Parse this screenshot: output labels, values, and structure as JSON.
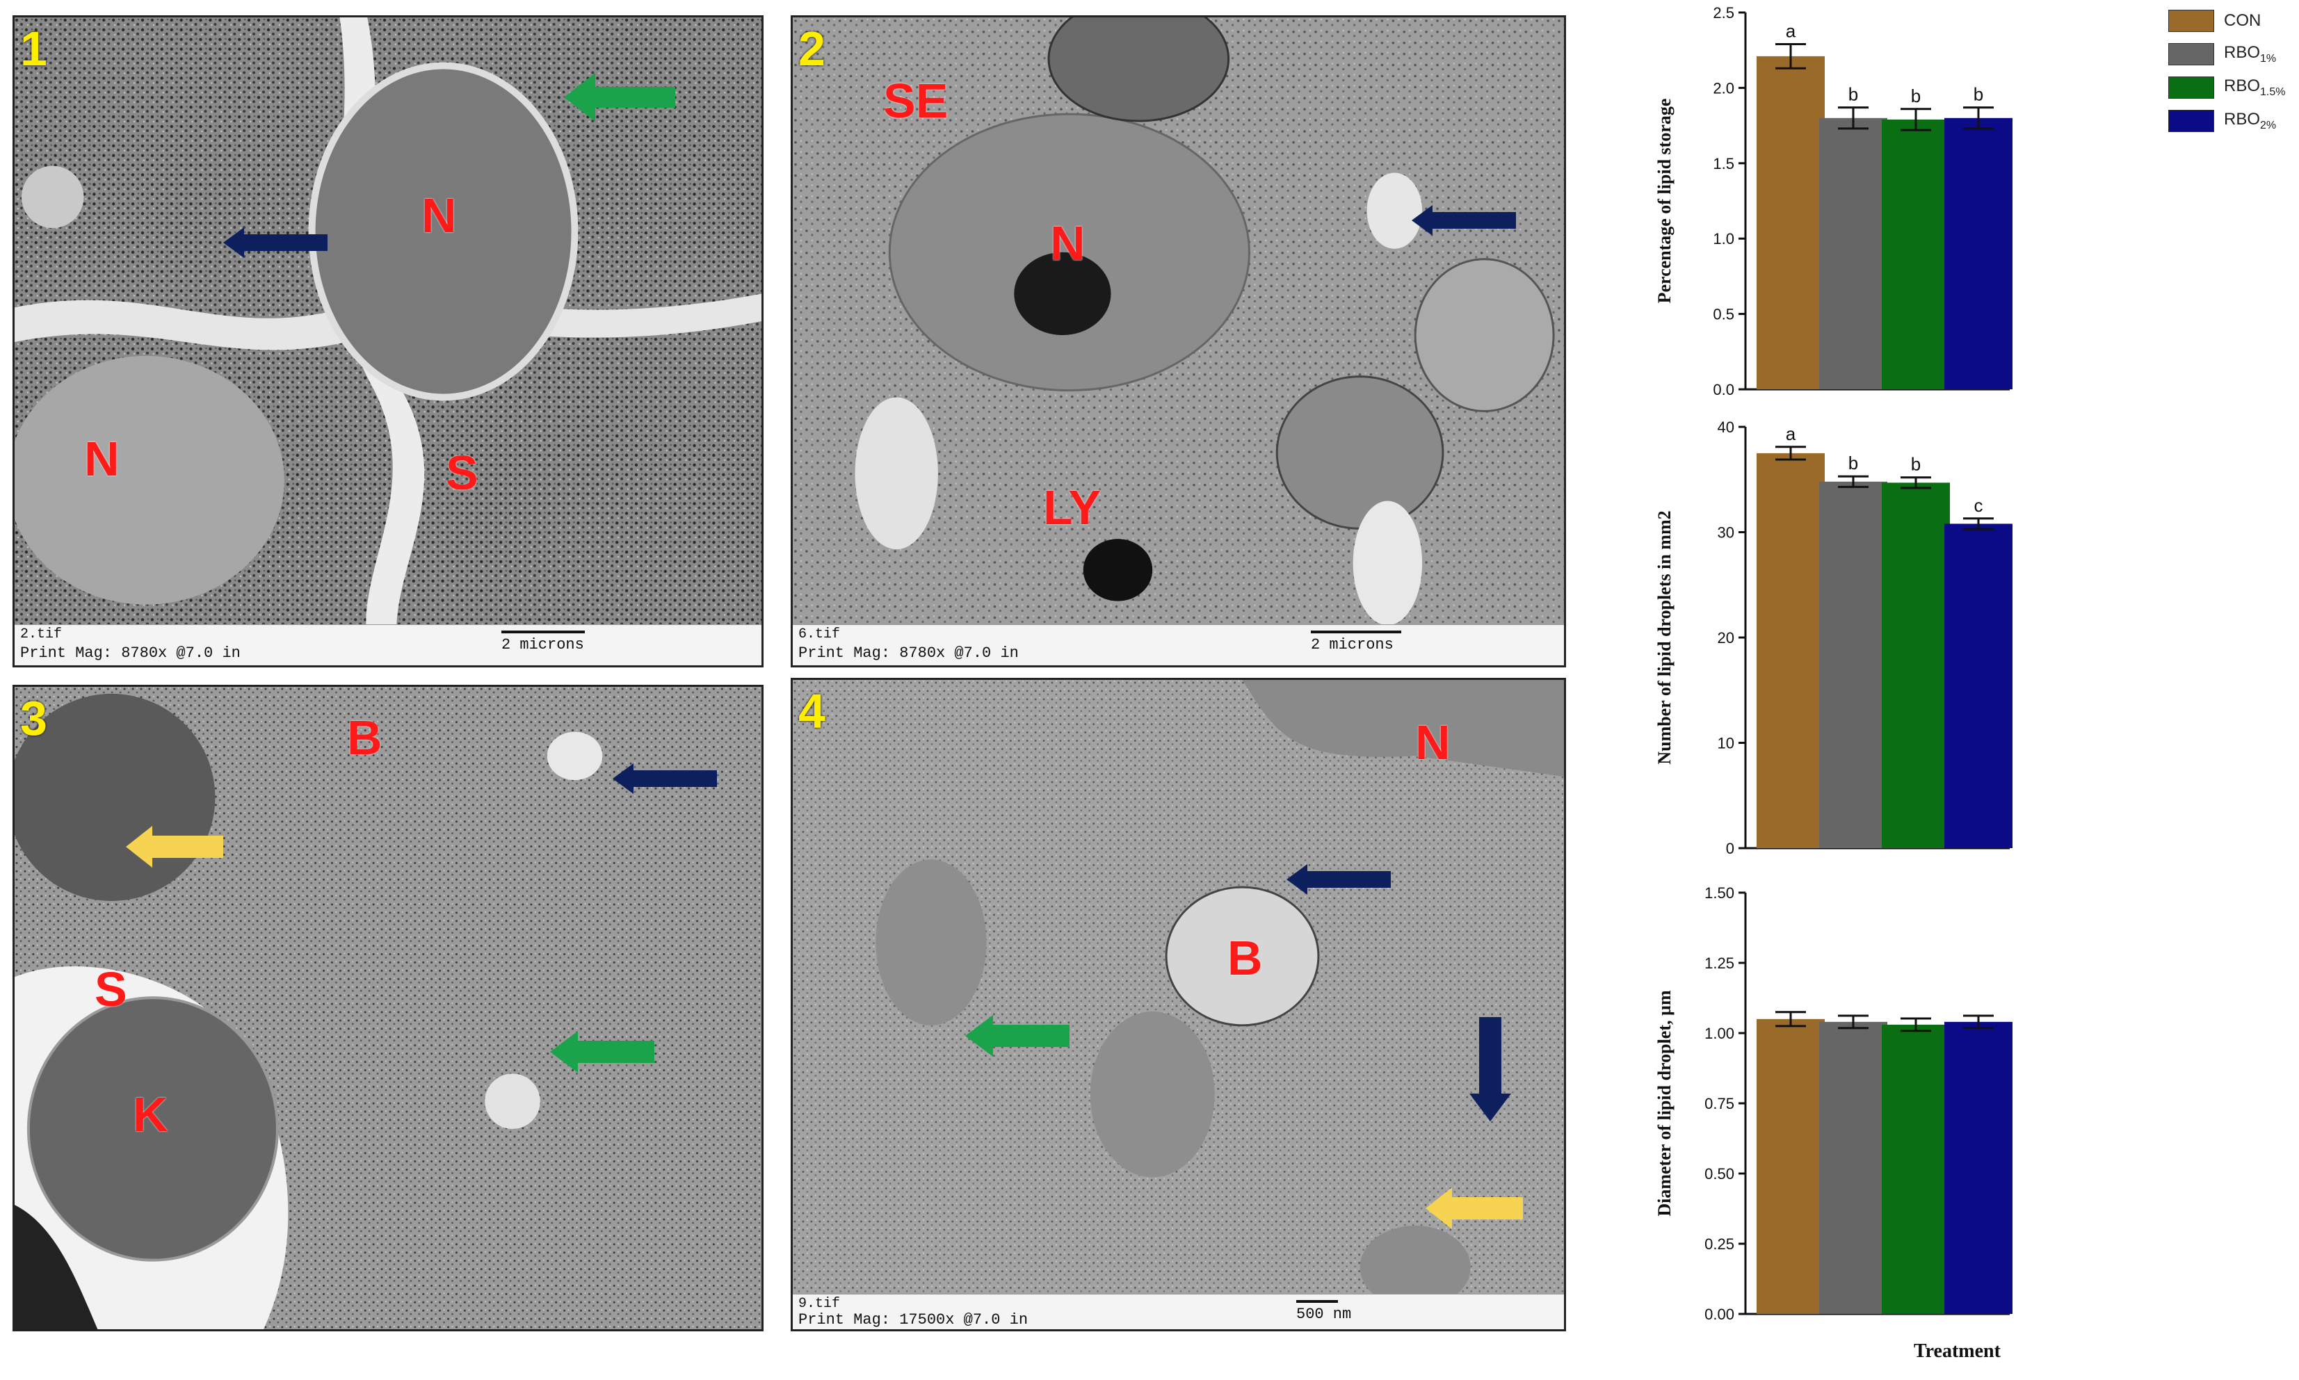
{
  "panels": [
    {
      "number": "1",
      "caption_file": "2.tif",
      "caption_mag": "Print Mag: 8780x @7.0 in",
      "scale_label": "2 microns",
      "labels": [
        "N",
        "N",
        "S"
      ]
    },
    {
      "number": "2",
      "caption_file": "6.tif",
      "caption_mag": "Print Mag: 8780x @7.0 in",
      "scale_label": "2 microns",
      "labels": [
        "SE",
        "N",
        "LY"
      ]
    },
    {
      "number": "3",
      "labels": [
        "B",
        "S",
        "K"
      ]
    },
    {
      "number": "4",
      "caption_file": "9.tif",
      "caption_mag": "Print Mag: 17500x @7.0 in",
      "scale_label": "500 nm",
      "labels": [
        "N",
        "B"
      ]
    }
  ],
  "arrow_colors": {
    "green": "#1aa34a",
    "navy": "#0d1f5c",
    "yellow": "#f7d352"
  },
  "legend": [
    {
      "label": "CON",
      "color": "#9a6a2a"
    },
    {
      "label": "RBO1%",
      "color": "#666666"
    },
    {
      "label": "RBO1.5%",
      "color": "#0a6e12"
    },
    {
      "label": "RBO2%",
      "color": "#0b0b88"
    }
  ],
  "x_axis_title": "Treatment",
  "chart_data": [
    {
      "type": "bar",
      "ylabel": "Percentage of lipid storage",
      "categories": [
        "CON",
        "RBO1%",
        "RBO1.5%",
        "RBO2%"
      ],
      "values": [
        2.21,
        1.8,
        1.79,
        1.8
      ],
      "errors": [
        0.08,
        0.07,
        0.07,
        0.07
      ],
      "letters": [
        "a",
        "b",
        "b",
        "b"
      ],
      "ylim": [
        0,
        2.5
      ],
      "yticks": [
        "0.0",
        "0.5",
        "1.0",
        "1.5",
        "2.0",
        "2.5"
      ],
      "tickvals": [
        0,
        0.5,
        1.0,
        1.5,
        2.0,
        2.5
      ]
    },
    {
      "type": "bar",
      "ylabel": "Number of lipid droplets in mm2",
      "categories": [
        "CON",
        "RBO1%",
        "RBO1.5%",
        "RBO2%"
      ],
      "values": [
        37.5,
        34.8,
        34.7,
        30.8
      ],
      "errors": [
        0.6,
        0.5,
        0.5,
        0.5
      ],
      "letters": [
        "a",
        "b",
        "b",
        "c"
      ],
      "ylim": [
        0,
        40
      ],
      "yticks": [
        "0",
        "10",
        "20",
        "30",
        "40"
      ],
      "tickvals": [
        0,
        10,
        20,
        30,
        40
      ]
    },
    {
      "type": "bar",
      "ylabel": "Diameter of lipid droplet, µm",
      "categories": [
        "CON",
        "RBO1%",
        "RBO1.5%",
        "RBO2%"
      ],
      "values": [
        1.05,
        1.04,
        1.03,
        1.04
      ],
      "errors": [
        0.025,
        0.022,
        0.022,
        0.022
      ],
      "letters": [
        "",
        "",
        "",
        ""
      ],
      "ylim": [
        0,
        1.5
      ],
      "yticks": [
        "0.00",
        "0.25",
        "0.50",
        "0.75",
        "1.00",
        "1.25",
        "1.50"
      ],
      "tickvals": [
        0,
        0.25,
        0.5,
        0.75,
        1.0,
        1.25,
        1.5
      ]
    }
  ]
}
